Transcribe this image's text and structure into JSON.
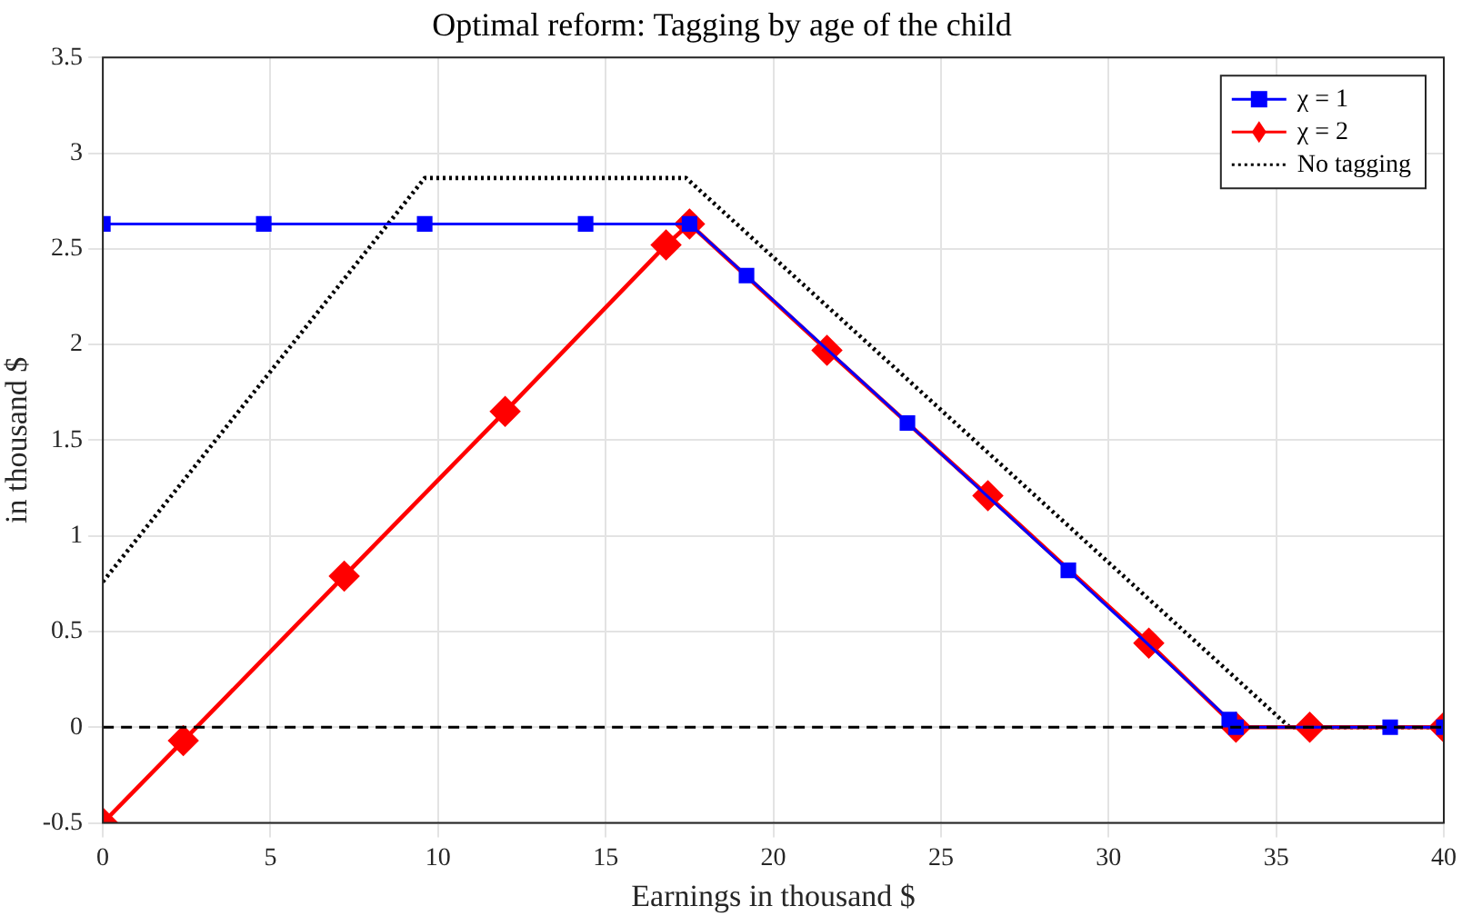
{
  "chart_data": {
    "type": "line",
    "title": "Optimal reform: Tagging by age of the child",
    "xlabel": "Earnings in thousand $",
    "ylabel": "in thousand $",
    "xlim": [
      0,
      40
    ],
    "xticks": [
      0,
      5,
      10,
      15,
      20,
      25,
      30,
      35,
      40
    ],
    "ylim": [
      -0.5,
      3.5
    ],
    "yticks": [
      -0.5,
      0,
      0.5,
      1,
      1.5,
      2,
      2.5,
      3,
      3.5
    ],
    "grid": true,
    "legend": "top right",
    "series": [
      {
        "name": "χ = 1",
        "color": "#0000ff",
        "marker": "square",
        "line_style": "solid",
        "x": [
          0,
          4.8,
          9.6,
          14.4,
          17.5,
          19.2,
          24,
          28.8,
          33.6,
          33.8,
          38.4,
          40
        ],
        "values": [
          2.63,
          2.63,
          2.63,
          2.63,
          2.63,
          2.36,
          1.59,
          0.82,
          0.04,
          0,
          0,
          0
        ]
      },
      {
        "name": "χ = 2",
        "color": "#ff0000",
        "marker": "diamond",
        "line_style": "solid",
        "x": [
          0,
          2.4,
          7.2,
          12,
          16.8,
          17.5,
          21.6,
          26.4,
          31.2,
          33.8,
          36,
          40
        ],
        "values": [
          -0.5,
          -0.07,
          0.79,
          1.65,
          2.52,
          2.63,
          1.97,
          1.21,
          0.44,
          0,
          0,
          0
        ]
      },
      {
        "name": "No tagging",
        "color": "#000000",
        "marker": "none",
        "line_style": "dotted",
        "x": [
          0,
          9.6,
          17.4,
          35.4,
          40
        ],
        "values": [
          0.76,
          2.87,
          2.87,
          0,
          0
        ]
      }
    ],
    "ref_lines": [
      {
        "axis": "y",
        "value": 0,
        "color": "#000000",
        "line_style": "dashed"
      }
    ]
  }
}
